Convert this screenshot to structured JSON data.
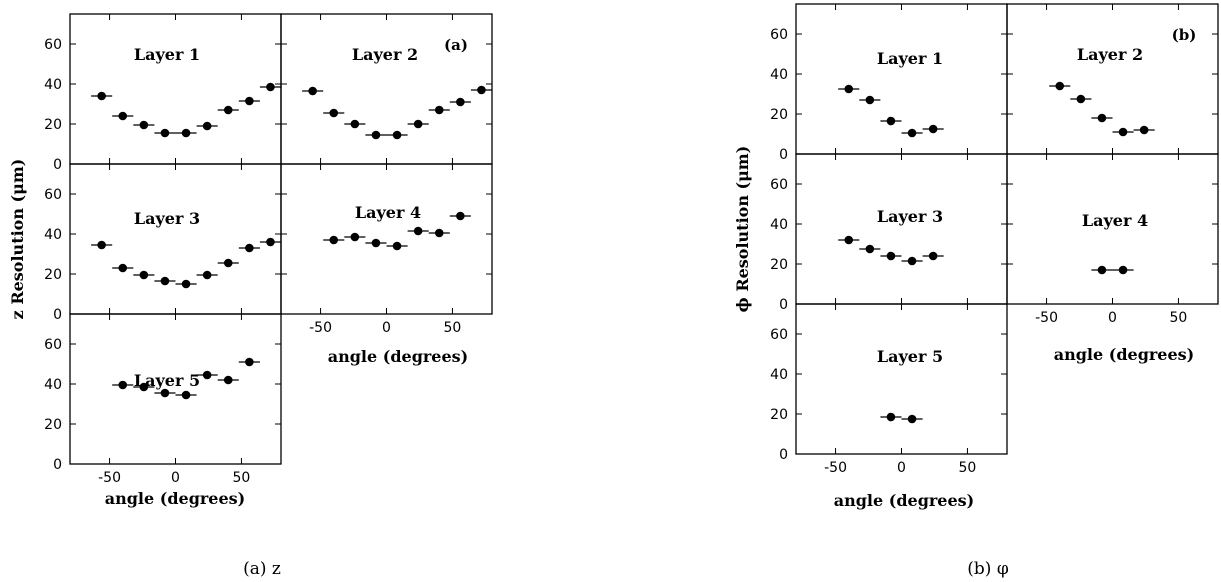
{
  "figures": [
    {
      "tag": "(a)",
      "caption": "(a) z",
      "ylabel": "z Resolution (μm)",
      "xlabel": "angle (degrees)"
    },
    {
      "tag": "(b)",
      "caption": "(b) φ",
      "ylabel": "ϕ Resolution (μm)",
      "xlabel": "angle (degrees)"
    }
  ],
  "chart_data": [
    {
      "type": "scatter",
      "figure": "(a)",
      "xlim": [
        -80,
        80
      ],
      "ylim": [
        0,
        75
      ],
      "xticks": [
        -50,
        0,
        50
      ],
      "yticks": [
        0,
        20,
        40,
        60
      ],
      "bin_width": 16,
      "panels": [
        {
          "label": "Layer 1",
          "x": [
            -56,
            -40,
            -24,
            -8,
            8,
            24,
            40,
            56,
            72
          ],
          "y": [
            34,
            24,
            19.5,
            15.5,
            15.5,
            19,
            27,
            31.5,
            38.5
          ]
        },
        {
          "label": "Layer 2",
          "x": [
            -56,
            -40,
            -24,
            -8,
            8,
            24,
            40,
            56,
            72
          ],
          "y": [
            36.5,
            25.5,
            20,
            14.5,
            14.5,
            20,
            27,
            31,
            37
          ]
        },
        {
          "label": "Layer 3",
          "x": [
            -56,
            -40,
            -24,
            -8,
            8,
            24,
            40,
            56,
            72
          ],
          "y": [
            34.5,
            23,
            19.5,
            16.5,
            15,
            19.5,
            25.5,
            33,
            36
          ]
        },
        {
          "label": "Layer 4",
          "x": [
            -40,
            -24,
            -8,
            8,
            24,
            40,
            56
          ],
          "y": [
            37,
            38.5,
            35.5,
            34,
            41.5,
            40.5,
            49
          ]
        },
        {
          "label": "Layer 5",
          "x": [
            -40,
            -24,
            -8,
            8,
            24,
            40,
            56
          ],
          "y": [
            39.5,
            38.5,
            35.5,
            34.5,
            44.5,
            42,
            51
          ]
        }
      ]
    },
    {
      "type": "scatter",
      "figure": "(b)",
      "xlim": [
        -80,
        80
      ],
      "ylim": [
        0,
        75
      ],
      "xticks": [
        -50,
        0,
        50
      ],
      "yticks": [
        0,
        20,
        40,
        60
      ],
      "bin_width": 16,
      "panels": [
        {
          "label": "Layer 1",
          "x": [
            -40,
            -24,
            -8,
            8,
            24
          ],
          "y": [
            32.5,
            27,
            16.5,
            10.5,
            12.5
          ]
        },
        {
          "label": "Layer 2",
          "x": [
            -40,
            -24,
            -8,
            8,
            24
          ],
          "y": [
            34,
            27.5,
            18,
            11,
            12
          ]
        },
        {
          "label": "Layer 3",
          "x": [
            -40,
            -24,
            -8,
            8,
            24
          ],
          "y": [
            32,
            27.5,
            24,
            21.5,
            24
          ]
        },
        {
          "label": "Layer 4",
          "x": [
            -8,
            8
          ],
          "y": [
            17,
            17
          ]
        },
        {
          "label": "Layer 5",
          "x": [
            -8,
            8
          ],
          "y": [
            18.5,
            17.5
          ]
        }
      ]
    }
  ]
}
